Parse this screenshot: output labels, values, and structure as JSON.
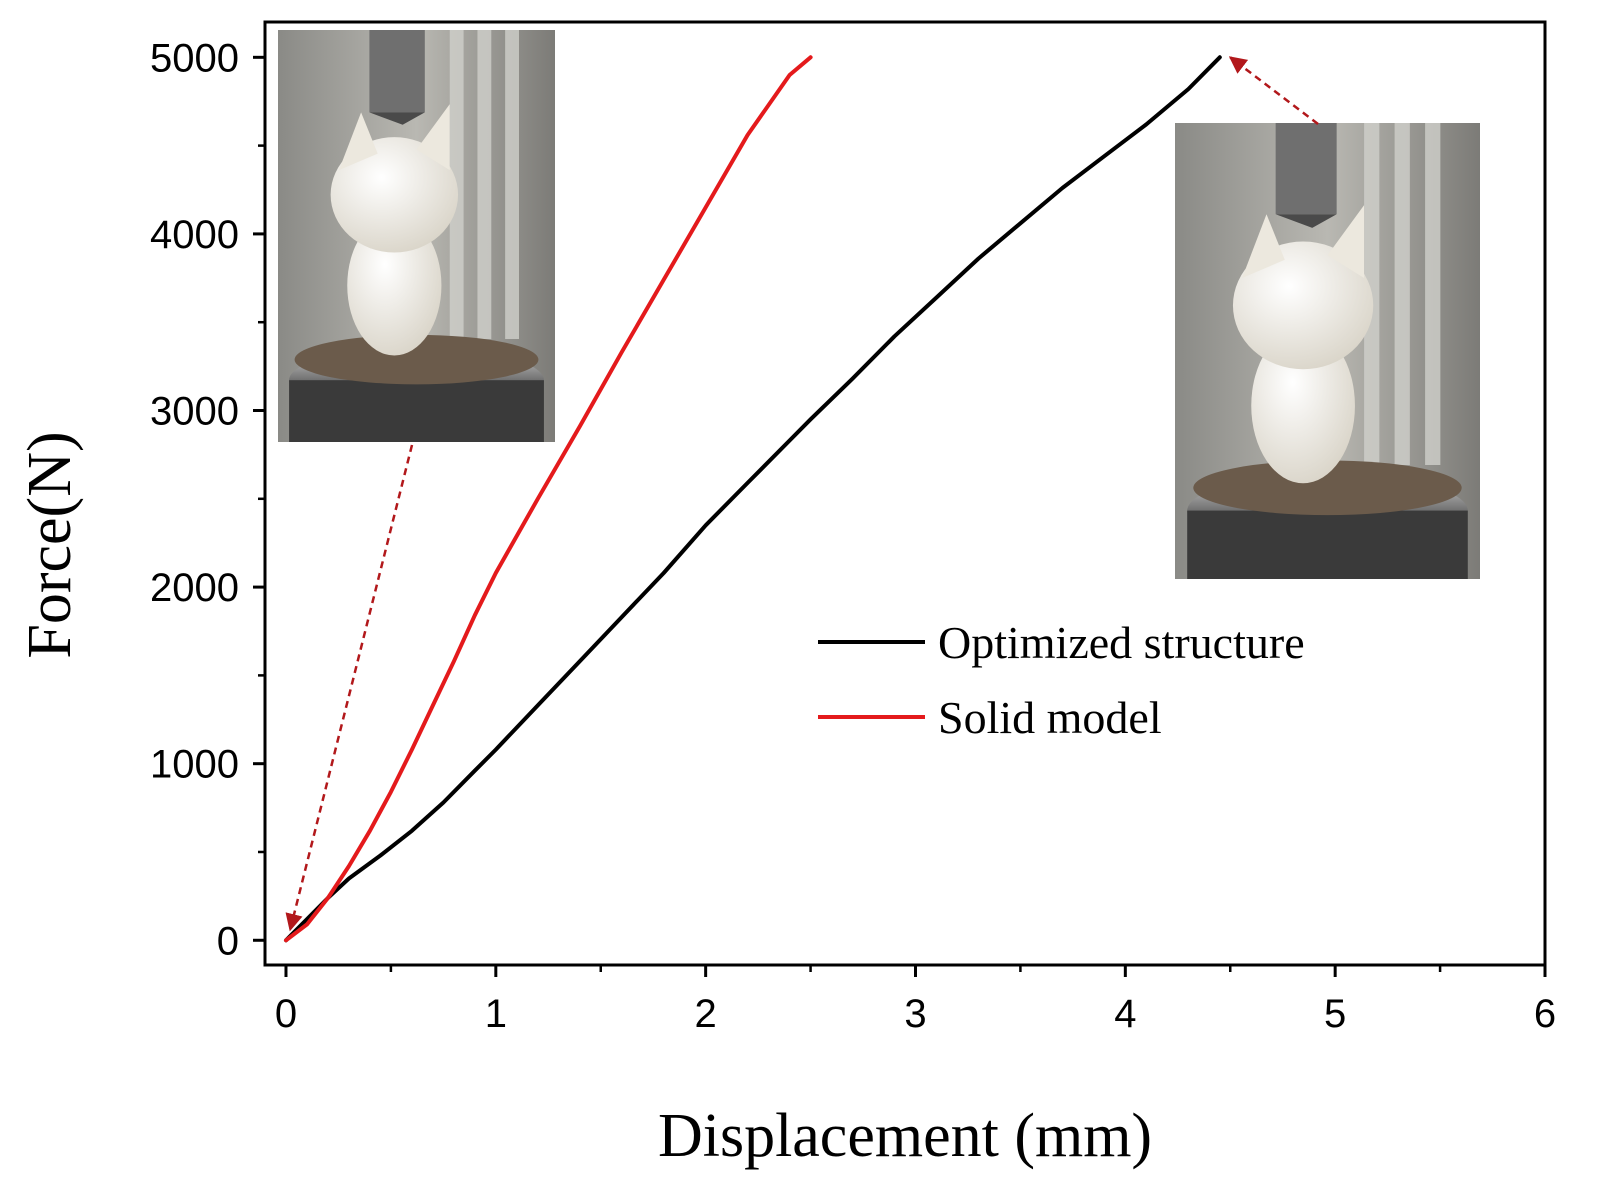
{
  "chart_data": {
    "type": "line",
    "title": "",
    "xlabel": "Displacement (mm)",
    "ylabel": "Force(N)",
    "xlim": [
      -0.1,
      6
    ],
    "ylim": [
      -140,
      5200
    ],
    "x_ticks": [
      0,
      1,
      2,
      3,
      4,
      5,
      6
    ],
    "x_tick_labels": [
      "0",
      "1",
      "2",
      "3",
      "4",
      "5",
      "6"
    ],
    "y_ticks": [
      0,
      1000,
      2000,
      3000,
      4000,
      5000
    ],
    "y_tick_labels": [
      "0",
      "1000",
      "2000",
      "3000",
      "4000",
      "5000"
    ],
    "grid": false,
    "legend_position": "center-right",
    "series": [
      {
        "name": "Optimized structure",
        "color": "#000000",
        "x": [
          0,
          0.1,
          0.2,
          0.3,
          0.45,
          0.6,
          0.75,
          0.9,
          1.0,
          1.2,
          1.4,
          1.6,
          1.8,
          2.0,
          2.2,
          2.4,
          2.5,
          2.7,
          2.9,
          3.1,
          3.3,
          3.5,
          3.7,
          3.9,
          4.1,
          4.3,
          4.45
        ],
        "y": [
          0,
          120,
          240,
          350,
          480,
          620,
          780,
          960,
          1080,
          1330,
          1580,
          1830,
          2080,
          2350,
          2590,
          2830,
          2950,
          3180,
          3420,
          3640,
          3860,
          4060,
          4260,
          4440,
          4620,
          4820,
          5000
        ]
      },
      {
        "name": "Solid model",
        "color": "#e41a1c",
        "x": [
          0,
          0.1,
          0.2,
          0.3,
          0.4,
          0.5,
          0.6,
          0.7,
          0.8,
          0.9,
          1.0,
          1.2,
          1.4,
          1.6,
          1.8,
          2.0,
          2.2,
          2.4,
          2.5
        ],
        "y": [
          0,
          90,
          240,
          420,
          620,
          840,
          1080,
          1330,
          1580,
          1840,
          2080,
          2500,
          2910,
          3330,
          3740,
          4150,
          4560,
          4900,
          5000
        ]
      }
    ],
    "annotations": [
      {
        "kind": "arrow",
        "style": "dashed",
        "color": "#b2181b",
        "from_inset": "inset-photo-left",
        "to": [
          0.02,
          60
        ]
      },
      {
        "kind": "arrow",
        "style": "dashed",
        "color": "#b2181b",
        "from_inset": "inset-photo-right",
        "to": [
          4.5,
          5000
        ]
      }
    ],
    "insets": [
      {
        "id": "inset-photo-left",
        "content": "photo",
        "icon": "cat-figurine-photo"
      },
      {
        "id": "inset-photo-right",
        "content": "photo",
        "icon": "cat-figurine-photo"
      }
    ]
  }
}
